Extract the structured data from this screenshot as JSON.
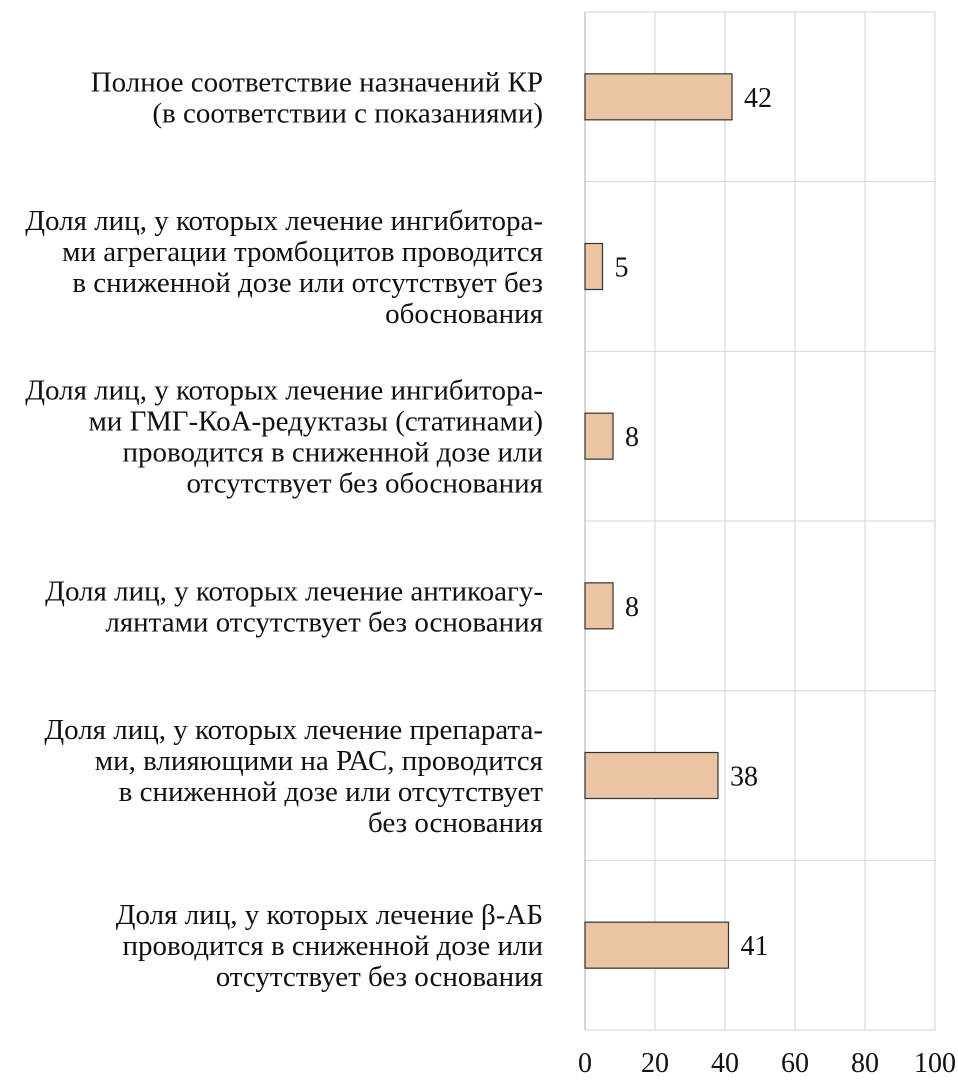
{
  "chart_data": {
    "type": "bar",
    "orientation": "horizontal",
    "categories": [
      [
        "Полное соответствие назначений КР",
        "(в соответствии с показаниями)"
      ],
      [
        "Доля лиц, у которых лечение ингибитора-",
        "ми агрегации тромбоцитов проводится",
        "в сниженной дозе или отсутствует без",
        "обоснования"
      ],
      [
        "Доля лиц, у которых лечение ингибитора-",
        "ми ГМГ-КоА-редуктазы (статинами)",
        "проводится в сниженной дозе или",
        "отсутствует без обоснования"
      ],
      [
        "Доля лиц, у которых лечение антикоагу-",
        "лянтами отсутствует без основания"
      ],
      [
        "Доля лиц, у которых лечение препарата-",
        "ми, влияющими на РАС, проводится",
        "в сниженной дозе или отсутствует",
        "без основания"
      ],
      [
        "Доля лиц, у которых лечение β-АБ",
        "проводится в сниженной дозе или",
        "отсутствует без основания"
      ]
    ],
    "values": [
      42,
      5,
      8,
      8,
      38,
      41
    ],
    "value_labels": [
      "42",
      "5",
      "8",
      "8",
      "38",
      "41"
    ],
    "xlim": [
      0,
      100
    ],
    "xticks": [
      0,
      20,
      40,
      60,
      80,
      100
    ],
    "xtick_labels": [
      "0",
      "20",
      "40",
      "60",
      "80",
      "100"
    ],
    "title": "",
    "xlabel": "",
    "ylabel": "",
    "grid": true,
    "legend": "none",
    "bar_color": "#ebc4a4",
    "bar_edge_color": "#333333",
    "grid_color": "#d9d9d9"
  }
}
